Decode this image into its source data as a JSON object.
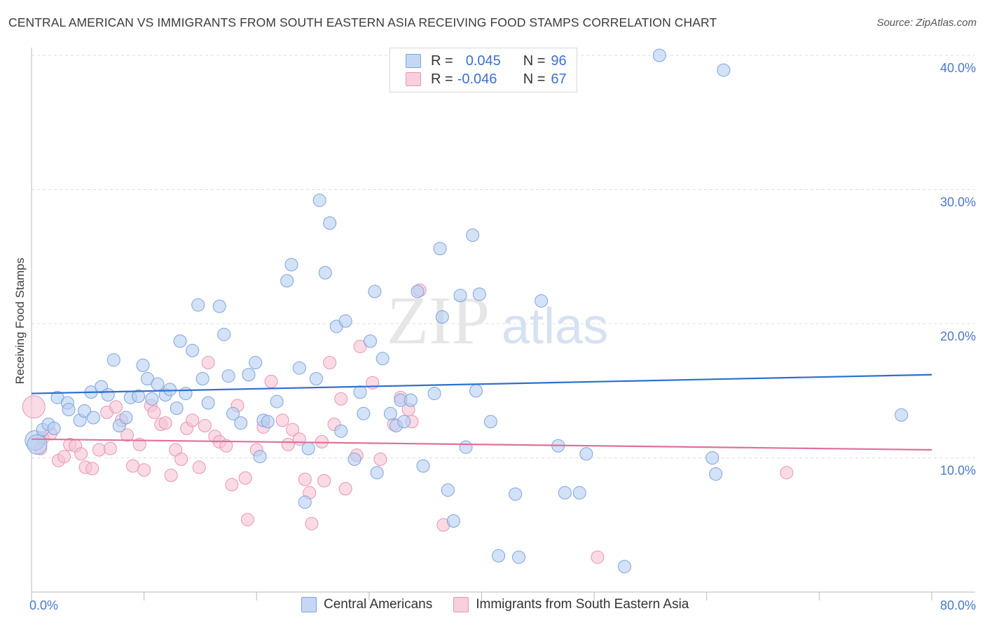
{
  "title": "CENTRAL AMERICAN VS IMMIGRANTS FROM SOUTH EASTERN ASIA RECEIVING FOOD STAMPS CORRELATION CHART",
  "source": "Source: ZipAtlas.com",
  "watermark": {
    "zip": "ZIP",
    "atlas": "atlas"
  },
  "legend": {
    "rows": [
      {
        "r_label": "R =",
        "r_value": "0.045",
        "n_label": "N =",
        "n_value": "96",
        "color": "#a8c6f0"
      },
      {
        "r_label": "R =",
        "r_value": "-0.046",
        "n_label": "N =",
        "n_value": "67",
        "color": "#f4b8cb"
      }
    ]
  },
  "colors": {
    "blue_fill": "#b5cef2",
    "blue_stroke": "#7ea3dc",
    "blue_line": "#2d6fce",
    "pink_fill": "#f7c3d3",
    "pink_stroke": "#e895b0",
    "pink_line": "#e0709b",
    "axis_text": "#4a78c8",
    "grid": "#dddddd"
  },
  "chart_data": {
    "type": "scatter",
    "title": "CENTRAL AMERICAN VS IMMIGRANTS FROM SOUTH EASTERN ASIA RECEIVING FOOD STAMPS CORRELATION CHART",
    "xlabel": "",
    "ylabel": "Receiving Food Stamps",
    "xlim": [
      0,
      80
    ],
    "ylim": [
      0,
      40
    ],
    "x_tick_labels": [
      "0.0%",
      "80.0%"
    ],
    "y_ticks": [
      10,
      20,
      30,
      40
    ],
    "y_tick_labels": [
      "10.0%",
      "20.0%",
      "30.0%",
      "40.0%"
    ],
    "grid": true,
    "legend_position": "top-center",
    "series": [
      {
        "name": "Central Americans",
        "r": 0.045,
        "n": 96,
        "trend": {
          "x": [
            0,
            80
          ],
          "y": [
            14.8,
            16.2
          ]
        },
        "points": [
          [
            0.3,
            11.3
          ],
          [
            0.5,
            11.0
          ],
          [
            1.0,
            12.1
          ],
          [
            1.5,
            12.5
          ],
          [
            2.0,
            12.2
          ],
          [
            2.3,
            14.5
          ],
          [
            3.2,
            14.1
          ],
          [
            3.3,
            13.6
          ],
          [
            4.3,
            12.8
          ],
          [
            4.7,
            13.5
          ],
          [
            5.3,
            14.9
          ],
          [
            5.5,
            13.0
          ],
          [
            6.2,
            15.3
          ],
          [
            6.8,
            14.7
          ],
          [
            7.3,
            17.3
          ],
          [
            7.8,
            12.4
          ],
          [
            8.4,
            13.0
          ],
          [
            8.8,
            14.5
          ],
          [
            9.5,
            14.6
          ],
          [
            9.9,
            16.9
          ],
          [
            10.3,
            15.9
          ],
          [
            10.7,
            14.4
          ],
          [
            11.2,
            15.5
          ],
          [
            11.9,
            14.7
          ],
          [
            12.3,
            15.1
          ],
          [
            12.9,
            13.7
          ],
          [
            13.2,
            18.7
          ],
          [
            13.7,
            14.8
          ],
          [
            14.3,
            18.0
          ],
          [
            14.8,
            21.4
          ],
          [
            15.2,
            15.9
          ],
          [
            15.7,
            14.1
          ],
          [
            16.7,
            21.3
          ],
          [
            17.1,
            19.2
          ],
          [
            17.5,
            16.1
          ],
          [
            17.9,
            13.3
          ],
          [
            18.6,
            12.6
          ],
          [
            19.3,
            16.2
          ],
          [
            19.9,
            17.1
          ],
          [
            20.3,
            10.1
          ],
          [
            20.6,
            12.8
          ],
          [
            21.0,
            12.7
          ],
          [
            21.8,
            14.2
          ],
          [
            22.7,
            23.2
          ],
          [
            23.1,
            24.4
          ],
          [
            23.8,
            16.7
          ],
          [
            24.3,
            6.7
          ],
          [
            24.6,
            10.7
          ],
          [
            25.3,
            15.9
          ],
          [
            25.6,
            29.2
          ],
          [
            26.1,
            23.8
          ],
          [
            26.5,
            27.5
          ],
          [
            27.1,
            19.8
          ],
          [
            27.5,
            12.0
          ],
          [
            27.9,
            20.2
          ],
          [
            28.7,
            9.9
          ],
          [
            29.2,
            14.9
          ],
          [
            29.5,
            13.3
          ],
          [
            30.1,
            18.7
          ],
          [
            30.5,
            22.4
          ],
          [
            30.7,
            8.9
          ],
          [
            31.2,
            17.4
          ],
          [
            31.9,
            13.3
          ],
          [
            32.4,
            12.4
          ],
          [
            32.8,
            14.3
          ],
          [
            33.1,
            12.7
          ],
          [
            33.7,
            14.3
          ],
          [
            34.3,
            22.4
          ],
          [
            34.8,
            9.4
          ],
          [
            35.8,
            14.8
          ],
          [
            36.3,
            25.6
          ],
          [
            36.5,
            20.5
          ],
          [
            37.0,
            7.6
          ],
          [
            37.5,
            5.3
          ],
          [
            38.1,
            22.1
          ],
          [
            38.6,
            10.8
          ],
          [
            39.2,
            26.6
          ],
          [
            39.5,
            15.0
          ],
          [
            39.8,
            22.2
          ],
          [
            40.8,
            12.7
          ],
          [
            41.5,
            2.7
          ],
          [
            43.0,
            7.3
          ],
          [
            43.3,
            2.6
          ],
          [
            45.3,
            21.7
          ],
          [
            46.8,
            10.9
          ],
          [
            47.4,
            7.4
          ],
          [
            48.7,
            7.4
          ],
          [
            49.3,
            10.3
          ],
          [
            52.7,
            1.9
          ],
          [
            55.8,
            40.0
          ],
          [
            60.5,
            10.0
          ],
          [
            60.8,
            8.8
          ],
          [
            61.5,
            38.9
          ],
          [
            77.3,
            13.2
          ]
        ]
      },
      {
        "name": "Immigrants from South Eastern Asia",
        "r": -0.046,
        "n": 67,
        "trend": {
          "x": [
            0,
            80
          ],
          "y": [
            11.4,
            10.6
          ]
        },
        "points": [
          [
            0.2,
            13.8
          ],
          [
            0.8,
            10.7
          ],
          [
            1.0,
            11.5
          ],
          [
            1.7,
            11.8
          ],
          [
            2.4,
            9.8
          ],
          [
            2.9,
            10.1
          ],
          [
            3.4,
            11.0
          ],
          [
            3.9,
            10.9
          ],
          [
            4.4,
            10.3
          ],
          [
            4.8,
            9.3
          ],
          [
            5.4,
            9.2
          ],
          [
            6.0,
            10.6
          ],
          [
            6.7,
            13.4
          ],
          [
            7.0,
            10.7
          ],
          [
            7.5,
            13.8
          ],
          [
            8.0,
            12.8
          ],
          [
            8.5,
            11.7
          ],
          [
            9.0,
            9.4
          ],
          [
            9.6,
            11.0
          ],
          [
            10.0,
            9.1
          ],
          [
            10.6,
            13.9
          ],
          [
            10.9,
            13.4
          ],
          [
            11.5,
            12.5
          ],
          [
            11.9,
            12.6
          ],
          [
            12.4,
            8.7
          ],
          [
            12.8,
            10.6
          ],
          [
            13.3,
            9.9
          ],
          [
            13.8,
            12.2
          ],
          [
            14.3,
            12.8
          ],
          [
            14.9,
            9.3
          ],
          [
            15.4,
            12.4
          ],
          [
            15.7,
            17.1
          ],
          [
            16.3,
            11.6
          ],
          [
            16.7,
            11.2
          ],
          [
            17.3,
            10.9
          ],
          [
            17.8,
            8.0
          ],
          [
            18.3,
            13.9
          ],
          [
            19.0,
            8.5
          ],
          [
            19.2,
            5.4
          ],
          [
            20.0,
            10.6
          ],
          [
            20.6,
            12.3
          ],
          [
            21.3,
            15.7
          ],
          [
            22.3,
            12.8
          ],
          [
            22.8,
            11.0
          ],
          [
            23.2,
            12.1
          ],
          [
            23.8,
            11.4
          ],
          [
            24.3,
            8.4
          ],
          [
            24.7,
            7.4
          ],
          [
            24.9,
            5.1
          ],
          [
            25.8,
            11.2
          ],
          [
            26.0,
            8.3
          ],
          [
            26.5,
            17.1
          ],
          [
            26.9,
            12.5
          ],
          [
            27.5,
            14.4
          ],
          [
            27.9,
            7.7
          ],
          [
            28.9,
            10.2
          ],
          [
            29.2,
            18.3
          ],
          [
            30.3,
            15.6
          ],
          [
            31.0,
            9.9
          ],
          [
            32.2,
            12.5
          ],
          [
            32.8,
            14.5
          ],
          [
            33.5,
            13.6
          ],
          [
            33.8,
            12.7
          ],
          [
            34.5,
            22.5
          ],
          [
            36.6,
            5.0
          ],
          [
            50.3,
            2.6
          ],
          [
            67.1,
            8.9
          ]
        ]
      }
    ]
  },
  "bottom_legend": {
    "blue_label": "Central Americans",
    "pink_label": "Immigrants from South Eastern Asia"
  }
}
